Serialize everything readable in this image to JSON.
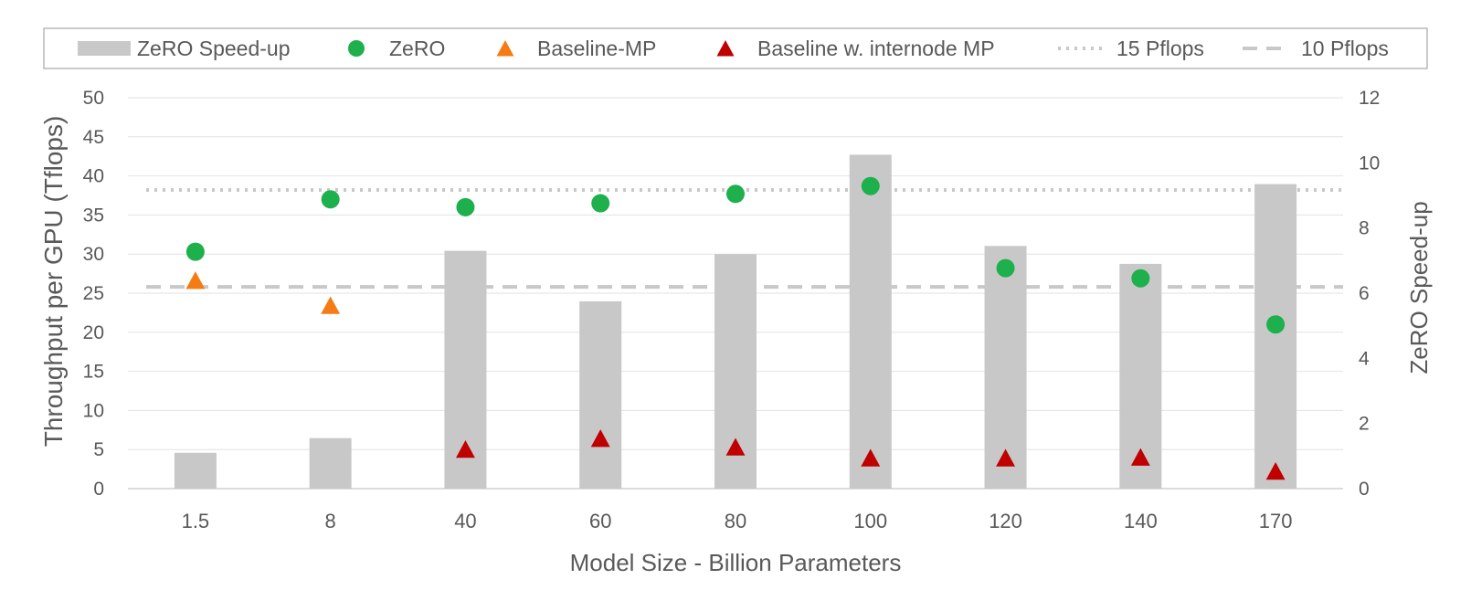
{
  "chart_data": {
    "type": "bar",
    "title": "",
    "xlabel": "Model Size - Billion Parameters",
    "ylabel": "Throughput per GPU (Tflops)",
    "y2label": "ZeRO Speed-up",
    "categories": [
      "1.5",
      "8",
      "40",
      "60",
      "80",
      "100",
      "120",
      "140",
      "170"
    ],
    "ylim": [
      0,
      50
    ],
    "yticks": [
      "0",
      "5",
      "10",
      "15",
      "20",
      "25",
      "30",
      "35",
      "40",
      "45",
      "50"
    ],
    "y2lim": [
      0,
      12
    ],
    "y2ticks": [
      "0",
      "2",
      "4",
      "6",
      "8",
      "10",
      "12"
    ],
    "grid": true,
    "legend_position": "top",
    "series": [
      {
        "name": "ZeRO Speed-up",
        "kind": "bar",
        "axis": "right",
        "color": "#c8c8c8",
        "values": [
          1.1,
          1.55,
          7.3,
          5.75,
          7.2,
          10.25,
          7.45,
          6.9,
          9.35
        ]
      },
      {
        "name": "ZeRO",
        "kind": "marker",
        "marker": "circle",
        "axis": "left",
        "color": "#1db04c",
        "values": [
          30.3,
          37,
          36,
          36.5,
          37.7,
          38.7,
          28.2,
          26.9,
          21
        ]
      },
      {
        "name": "Baseline-MP",
        "kind": "marker",
        "marker": "triangle",
        "axis": "left",
        "color": "#f57c14",
        "values": [
          26.5,
          23.3,
          null,
          null,
          null,
          null,
          null,
          null,
          null
        ]
      },
      {
        "name": "Baseline w. internode MP",
        "kind": "marker",
        "marker": "triangle",
        "axis": "left",
        "color": "#c00000",
        "values": [
          null,
          null,
          4.9,
          6.3,
          5.2,
          3.8,
          3.8,
          3.9,
          2.1
        ]
      }
    ],
    "reference_lines": [
      {
        "name": "15 Pflops",
        "style": "dotted",
        "axis": "left",
        "value": 38.2,
        "color": "#c8c8c8"
      },
      {
        "name": "10 Pflops",
        "style": "dashed",
        "axis": "left",
        "value": 25.8,
        "color": "#c8c8c8"
      }
    ]
  }
}
